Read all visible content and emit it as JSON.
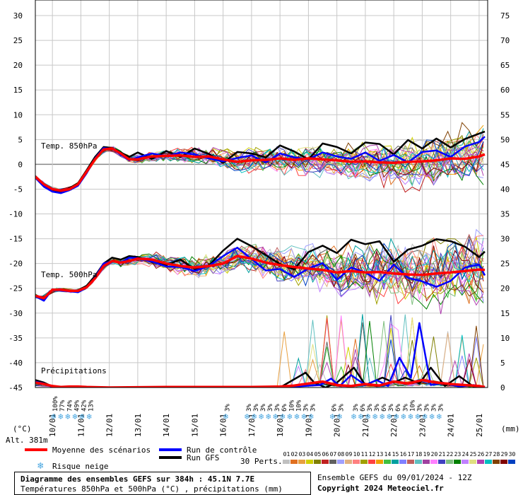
{
  "header": {
    "title": "Diagramme des ensembles GEFS sur 384h : 45.1N 7.7E",
    "subtitle": "Températures 850hPa et 500hPa (°C) , précipitations (mm)",
    "run_info": "Ensemble GEFS du 09/01/2024 - 12Z",
    "copyright": "Copyright 2024 Meteociel.fr"
  },
  "axes": {
    "left_unit": "(°C)",
    "right_unit": "(mm)",
    "altitude": "Alt. 381m",
    "left_ticks": [
      "30",
      "25",
      "20",
      "15",
      "10",
      "5",
      "0",
      "-5",
      "-10",
      "-15",
      "-20",
      "-25",
      "-30",
      "-35",
      "-40",
      "-45"
    ],
    "right_ticks": [
      "75",
      "70",
      "65",
      "60",
      "55",
      "50",
      "45",
      "40",
      "35",
      "30",
      "25",
      "20",
      "15",
      "10",
      "5",
      "0"
    ],
    "x_ticks": [
      "10/01",
      "11/01",
      "12/01",
      "13/01",
      "14/01",
      "15/01",
      "16/01",
      "17/01",
      "18/01",
      "19/01",
      "20/01",
      "21/01",
      "22/01",
      "23/01",
      "24/01",
      "25/01"
    ]
  },
  "labels": {
    "t850": "Temp. 850hPa",
    "t500": "Temp. 500hPa",
    "precip": "Précipitations"
  },
  "legend": {
    "mean": "Moyenne des scénarios",
    "control": "Run de contrôle",
    "gfs": "Run GFS",
    "snow": "Risque neige",
    "perts_label": "30 Perts.",
    "perts": [
      "01",
      "02",
      "03",
      "04",
      "05",
      "06",
      "07",
      "08",
      "09",
      "10",
      "11",
      "12",
      "13",
      "14",
      "15",
      "16",
      "17",
      "18",
      "19",
      "20",
      "21",
      "22",
      "23",
      "24",
      "25",
      "26",
      "27",
      "28",
      "29",
      "30"
    ],
    "pert_colors": [
      "#c0c0c0",
      "#e07020",
      "#e8a040",
      "#d0d000",
      "#808000",
      "#c02020",
      "#606060",
      "#a0a0ff",
      "#e0b080",
      "#ff8080",
      "#a0a000",
      "#ff4040",
      "#f0a000",
      "#40c040",
      "#00a0a0",
      "#8080ff",
      "#c06060",
      "#60c0c0",
      "#a040a0",
      "#ff80ff",
      "#4040c0",
      "#80c080",
      "#008000",
      "#c080ff",
      "#e0e080",
      "#b040b0",
      "#00c0c0",
      "#804000",
      "#800000",
      "#0040c0"
    ],
    "colors": {
      "mean": "#ff0000",
      "control": "#0000ff",
      "gfs": "#000000",
      "snow": "#4aa7e0"
    }
  },
  "snow_risk": [
    {
      "day": 0.1,
      "pct": "100%"
    },
    {
      "day": 0.35,
      "pct": "77%"
    },
    {
      "day": 0.6,
      "pct": "74%"
    },
    {
      "day": 0.85,
      "pct": "49%"
    },
    {
      "day": 1.1,
      "pct": "42%"
    },
    {
      "day": 1.35,
      "pct": "13%"
    },
    {
      "day": 6.15,
      "pct": "3%"
    },
    {
      "day": 6.9,
      "pct": "3%"
    },
    {
      "day": 7.15,
      "pct": "3%"
    },
    {
      "day": 7.4,
      "pct": "3%"
    },
    {
      "day": 7.65,
      "pct": "3%"
    },
    {
      "day": 7.9,
      "pct": "3%"
    },
    {
      "day": 8.15,
      "pct": "6%"
    },
    {
      "day": 8.4,
      "pct": "10%"
    },
    {
      "day": 8.65,
      "pct": "10%"
    },
    {
      "day": 8.9,
      "pct": "3%"
    },
    {
      "day": 9.15,
      "pct": "3%"
    },
    {
      "day": 9.9,
      "pct": "6%"
    },
    {
      "day": 10.15,
      "pct": "3%"
    },
    {
      "day": 10.65,
      "pct": "3%"
    },
    {
      "day": 10.9,
      "pct": "6%"
    },
    {
      "day": 11.15,
      "pct": "3%"
    },
    {
      "day": 11.4,
      "pct": "3%"
    },
    {
      "day": 11.65,
      "pct": "6%"
    },
    {
      "day": 11.9,
      "pct": "3%"
    },
    {
      "day": 12.15,
      "pct": "6%"
    },
    {
      "day": 12.4,
      "pct": "3%"
    },
    {
      "day": 12.65,
      "pct": "10%"
    },
    {
      "day": 12.9,
      "pct": "3%"
    },
    {
      "day": 13.15,
      "pct": "3%"
    },
    {
      "day": 13.4,
      "pct": "3%"
    },
    {
      "day": 13.65,
      "pct": "3%"
    }
  ],
  "chart_data": {
    "type": "line",
    "x_unit": "days from 10/01 00Z",
    "xlim": [
      -0.6,
      15.3
    ],
    "ylim_temp": [
      -45,
      30
    ],
    "ylim_precip": [
      0,
      75
    ],
    "grid": true,
    "series": [
      {
        "name": "Moyenne des scénarios",
        "level": "850hPa",
        "x": [
          -0.6,
          -0.3,
          0,
          0.3,
          0.6,
          0.9,
          1.2,
          1.5,
          1.8,
          2.1,
          2.4,
          2.7,
          3,
          3.5,
          4,
          4.5,
          5,
          5.5,
          6,
          6.5,
          7,
          7.5,
          8,
          8.5,
          9,
          9.5,
          10,
          10.5,
          11,
          11.5,
          12,
          12.5,
          13,
          13.5,
          14,
          14.5,
          15,
          15.2
        ],
        "y": [
          -2.5,
          -4,
          -5,
          -5.3,
          -5,
          -4,
          -1.5,
          1,
          3,
          3.2,
          2.2,
          1,
          1,
          1.6,
          1.7,
          1.8,
          1.5,
          1.6,
          1,
          0.5,
          0.8,
          0.9,
          1.2,
          0.9,
          1.2,
          1,
          0.8,
          0.5,
          0.6,
          0.4,
          0.3,
          0.5,
          0.6,
          0.8,
          1.2,
          1.1,
          1.6,
          2
        ]
      },
      {
        "name": "Run de contrôle",
        "level": "850hPa",
        "x": [
          -0.6,
          -0.3,
          0,
          0.3,
          0.6,
          0.9,
          1.2,
          1.5,
          1.8,
          2.1,
          2.4,
          2.7,
          3,
          3.5,
          4,
          4.5,
          5,
          5.5,
          6,
          6.5,
          7,
          7.5,
          8,
          8.5,
          9,
          9.5,
          10,
          10.5,
          11,
          11.5,
          12,
          12.5,
          13,
          13.5,
          14,
          14.5,
          15,
          15.2
        ],
        "y": [
          -2.7,
          -4.5,
          -5.5,
          -5.8,
          -5.2,
          -4.3,
          -1.8,
          1.2,
          3.3,
          3.1,
          2,
          0.8,
          1.4,
          2.2,
          1.6,
          2.4,
          2,
          1.2,
          0.6,
          1.3,
          1.8,
          0.4,
          2.2,
          1.4,
          1,
          2.4,
          1.6,
          1.1,
          2.4,
          0.7,
          1.9,
          0.4,
          2.5,
          2.8,
          1.5,
          3.6,
          4.5,
          5.6
        ]
      },
      {
        "name": "Run GFS",
        "level": "850hPa",
        "x": [
          -0.6,
          -0.3,
          0,
          0.3,
          0.6,
          0.9,
          1.2,
          1.5,
          1.8,
          2.1,
          2.4,
          2.7,
          3,
          3.5,
          4,
          4.5,
          5,
          5.5,
          6,
          6.5,
          7,
          7.5,
          8,
          8.5,
          9,
          9.5,
          10,
          10.5,
          11,
          11.5,
          12,
          12.5,
          13,
          13.5,
          14,
          14.5,
          15,
          15.2
        ],
        "y": [
          -2.6,
          -4.2,
          -5.2,
          -5.5,
          -4.8,
          -3.8,
          -1.2,
          1.5,
          3.5,
          3.3,
          2.4,
          1.5,
          2.4,
          1.1,
          2.7,
          1.5,
          3.2,
          2.1,
          0.3,
          2.5,
          2.2,
          1.4,
          3.8,
          2.6,
          1,
          4.2,
          3.5,
          2.2,
          4.4,
          4.1,
          2,
          4.9,
          3.2,
          5.2,
          3.4,
          5.1,
          6.2,
          6.6
        ]
      },
      {
        "name": "Moyenne des scénarios",
        "level": "500hPa",
        "x": [
          -0.6,
          -0.3,
          0,
          0.3,
          0.6,
          0.9,
          1.2,
          1.5,
          1.8,
          2.1,
          2.4,
          2.7,
          3,
          3.5,
          4,
          4.5,
          5,
          5.5,
          6,
          6.5,
          7,
          7.5,
          8,
          8.5,
          9,
          9.5,
          10,
          10.5,
          11,
          11.5,
          12,
          12.5,
          13,
          13.5,
          14,
          14.5,
          15,
          15.2
        ],
        "y": [
          -26.5,
          -27,
          -25.3,
          -25.3,
          -25.5,
          -25.5,
          -24.8,
          -23,
          -20.5,
          -19.5,
          -19.8,
          -19.5,
          -19,
          -19.2,
          -20,
          -20.5,
          -20.8,
          -20.5,
          -20,
          -18.5,
          -19,
          -19.8,
          -20.3,
          -20.7,
          -21,
          -21.3,
          -21.8,
          -21.5,
          -21.8,
          -21.7,
          -22,
          -22.2,
          -22.3,
          -22,
          -21.8,
          -21.5,
          -21.2,
          -21.3
        ]
      },
      {
        "name": "Run de contrôle",
        "level": "500hPa",
        "x": [
          -0.6,
          -0.3,
          0,
          0.3,
          0.6,
          0.9,
          1.2,
          1.5,
          1.8,
          2.1,
          2.4,
          2.7,
          3,
          3.5,
          4,
          4.5,
          5,
          5.5,
          6,
          6.5,
          7,
          7.5,
          8,
          8.5,
          9,
          9.5,
          10,
          10.5,
          11,
          11.5,
          12,
          12.5,
          13,
          13.5,
          14,
          14.5,
          15,
          15.2
        ],
        "y": [
          -26.6,
          -27.5,
          -25.2,
          -25.5,
          -25.6,
          -25.8,
          -24.9,
          -22.8,
          -20,
          -19.5,
          -19.8,
          -18.8,
          -18.9,
          -19.6,
          -20.6,
          -20.7,
          -21.5,
          -20.5,
          -18.5,
          -16.8,
          -19.1,
          -21.4,
          -21.1,
          -22.7,
          -21,
          -19.9,
          -23.3,
          -20.8,
          -21.8,
          -23.5,
          -20.2,
          -22.9,
          -23.6,
          -24.7,
          -23.5,
          -20.8,
          -20.2,
          -22.4
        ]
      },
      {
        "name": "Run GFS",
        "level": "500hPa",
        "x": [
          -0.6,
          -0.3,
          0,
          0.3,
          0.6,
          0.9,
          1.2,
          1.5,
          1.8,
          2.1,
          2.4,
          2.7,
          3,
          3.5,
          4,
          4.5,
          5,
          5.5,
          6,
          6.5,
          7,
          7.5,
          8,
          8.5,
          9,
          9.5,
          10,
          10.5,
          11,
          11.5,
          12,
          12.5,
          13,
          13.5,
          14,
          14.5,
          15,
          15.2
        ],
        "y": [
          -26.5,
          -27.2,
          -25.2,
          -25.4,
          -25.6,
          -25.4,
          -24.5,
          -22.5,
          -20,
          -18.8,
          -19.2,
          -18.5,
          -18.7,
          -19.7,
          -20.3,
          -19.2,
          -21.1,
          -20.4,
          -17.4,
          -15,
          -16.5,
          -18.3,
          -20.1,
          -21.2,
          -17.7,
          -16.4,
          -17.9,
          -15.2,
          -16.1,
          -15.5,
          -19.6,
          -17.2,
          -16.4,
          -15.1,
          -15.5,
          -16.6,
          -18.7,
          -17.6
        ]
      },
      {
        "name": "Moyenne des scénarios",
        "level": "precip",
        "x": [
          -0.6,
          -0.3,
          0,
          0.3,
          0.6,
          0.9,
          1.2,
          2,
          4,
          6,
          7,
          8,
          8.5,
          9,
          9.5,
          10,
          10.5,
          11,
          11.5,
          12,
          12.5,
          13,
          13.5,
          14,
          14.5,
          15,
          15.2
        ],
        "y": [
          1,
          0.7,
          0.3,
          0.1,
          0.2,
          0.2,
          0.1,
          0,
          0.1,
          0.1,
          0.1,
          0.2,
          0.4,
          0.8,
          1.2,
          0.5,
          0.3,
          0.7,
          0.4,
          1.2,
          0.8,
          1.5,
          1,
          0.7,
          0.5,
          0.3,
          0.1
        ]
      },
      {
        "name": "Run GFS",
        "level": "precip",
        "x": [
          -0.6,
          -0.3,
          0,
          1,
          2,
          6.5,
          8,
          8.6,
          8.9,
          9.2,
          9.6,
          10,
          10.6,
          11,
          11.6,
          12,
          12.4,
          12.9,
          13.3,
          13.8,
          14.3,
          14.8,
          15.2
        ],
        "y": [
          1.5,
          1,
          0.2,
          0,
          0,
          0,
          0,
          2,
          3,
          1,
          0,
          1,
          4,
          0.5,
          2,
          1,
          2,
          0.8,
          4,
          0.3,
          2.3,
          0.2,
          0
        ]
      },
      {
        "name": "Run de contrôle",
        "level": "precip",
        "x": [
          -0.6,
          -0.3,
          0,
          1,
          2,
          7,
          8,
          9.4,
          9.8,
          10.1,
          10.5,
          11,
          11.4,
          11.8,
          12.2,
          12.6,
          12.9,
          13.3,
          13.7,
          14.3,
          14.8,
          15.2
        ],
        "y": [
          1.2,
          0.8,
          0.1,
          0,
          0,
          0,
          0,
          0.5,
          1.8,
          0.3,
          2.5,
          0.5,
          1.5,
          0.3,
          6,
          2,
          13,
          0.5,
          1,
          0.2,
          0.5,
          0
        ]
      }
    ]
  }
}
